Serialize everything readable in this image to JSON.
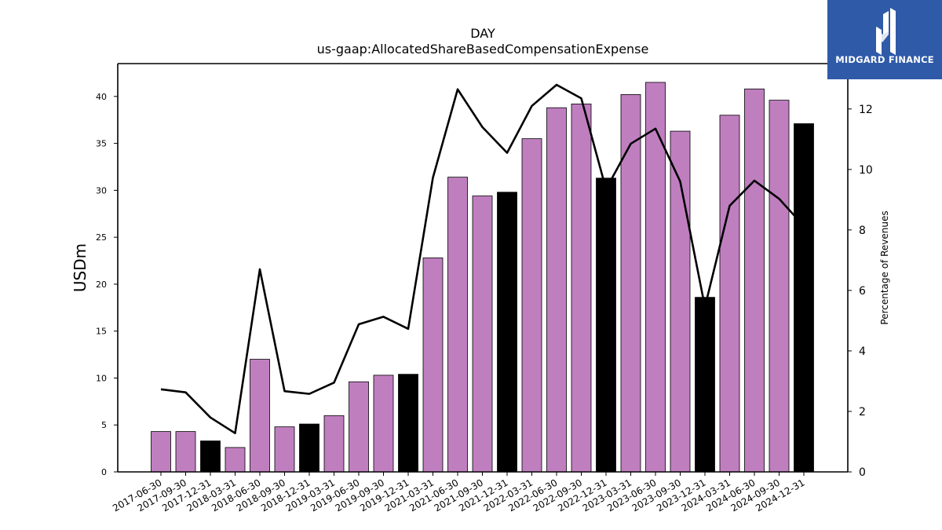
{
  "chart_data": {
    "type": "bar",
    "title": "DAY",
    "subtitle": "us-gaap:AllocatedShareBasedCompensationExpense",
    "ylabel": "USDm",
    "y2label": "Percentage of Revenues",
    "ylim": [
      0,
      43.5
    ],
    "y2lim": [
      0,
      13.5
    ],
    "yticks": [
      0,
      5,
      10,
      15,
      20,
      25,
      30,
      35,
      40
    ],
    "y2ticks": [
      0,
      2,
      4,
      6,
      8,
      10,
      12
    ],
    "grid": false,
    "categories": [
      "2017-06-30",
      "2017-09-30",
      "2017-12-31",
      "2018-03-31",
      "2018-06-30",
      "2018-09-30",
      "2018-12-31",
      "2019-03-31",
      "2019-06-30",
      "2019-09-30",
      "2019-12-31",
      "2021-03-31",
      "2021-06-30",
      "2021-09-30",
      "2021-12-31",
      "2022-03-31",
      "2022-06-30",
      "2022-09-30",
      "2022-12-31",
      "2023-03-31",
      "2023-06-30",
      "2023-09-30",
      "2023-12-31",
      "2024-03-31",
      "2024-06-30",
      "2024-09-30",
      "2024-12-31"
    ],
    "series": [
      {
        "type": "bar",
        "values": [
          4.3,
          4.3,
          3.3,
          2.6,
          12.0,
          4.8,
          5.1,
          6.0,
          9.6,
          10.3,
          10.4,
          22.8,
          31.4,
          29.4,
          29.8,
          35.5,
          38.8,
          39.2,
          31.3,
          40.2,
          41.5,
          36.3,
          18.6,
          38.0,
          40.8,
          39.6,
          37.1
        ],
        "quarter_colors": [
          "#bf7fbf",
          "#bf7fbf",
          "#000000",
          "#bf7fbf",
          "#bf7fbf",
          "#bf7fbf",
          "#000000",
          "#bf7fbf",
          "#bf7fbf",
          "#bf7fbf",
          "#000000",
          "#bf7fbf",
          "#bf7fbf",
          "#bf7fbf",
          "#000000",
          "#bf7fbf",
          "#bf7fbf",
          "#bf7fbf",
          "#000000",
          "#bf7fbf",
          "#bf7fbf",
          "#bf7fbf",
          "#000000",
          "#bf7fbf",
          "#bf7fbf",
          "#bf7fbf",
          "#000000"
        ]
      },
      {
        "type": "line",
        "axis": "right",
        "values": [
          2.73,
          2.63,
          1.8,
          1.28,
          6.7,
          2.67,
          2.58,
          2.95,
          4.88,
          5.13,
          4.73,
          9.73,
          12.65,
          11.4,
          10.55,
          12.1,
          12.8,
          12.35,
          9.35,
          10.85,
          11.35,
          9.6,
          5.45,
          8.8,
          9.63,
          9.03,
          8.13
        ],
        "color": "#000000"
      }
    ]
  },
  "logo": {
    "text": "MIDGARD FINANCE",
    "background": "#2f5aa8"
  }
}
